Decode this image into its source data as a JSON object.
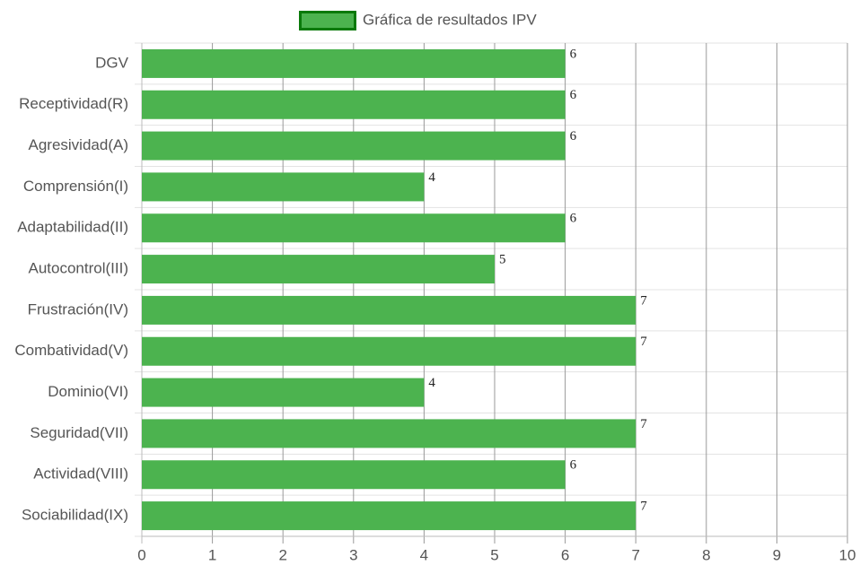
{
  "chart_data": {
    "type": "hbar",
    "categories": [
      "DGV",
      "Receptividad(R)",
      "Agresividad(A)",
      "Comprensión(I)",
      "Adaptabilidad(II)",
      "Autocontrol(III)",
      "Frustración(IV)",
      "Combatividad(V)",
      "Dominio(VI)",
      "Seguridad(VII)",
      "Actividad(VIII)",
      "Sociabilidad(IX)"
    ],
    "series": [
      {
        "name": "Gráfica de resultados IPV",
        "color": "#4cb34f",
        "border_color": "#0a7a0a",
        "values": [
          6,
          6,
          6,
          4,
          6,
          5,
          7,
          7,
          4,
          7,
          6,
          7
        ]
      }
    ],
    "xlim": [
      0,
      10
    ],
    "xticks": [
      0,
      1,
      2,
      3,
      4,
      5,
      6,
      7,
      8,
      9,
      10
    ],
    "grid": true,
    "legend": "top"
  }
}
